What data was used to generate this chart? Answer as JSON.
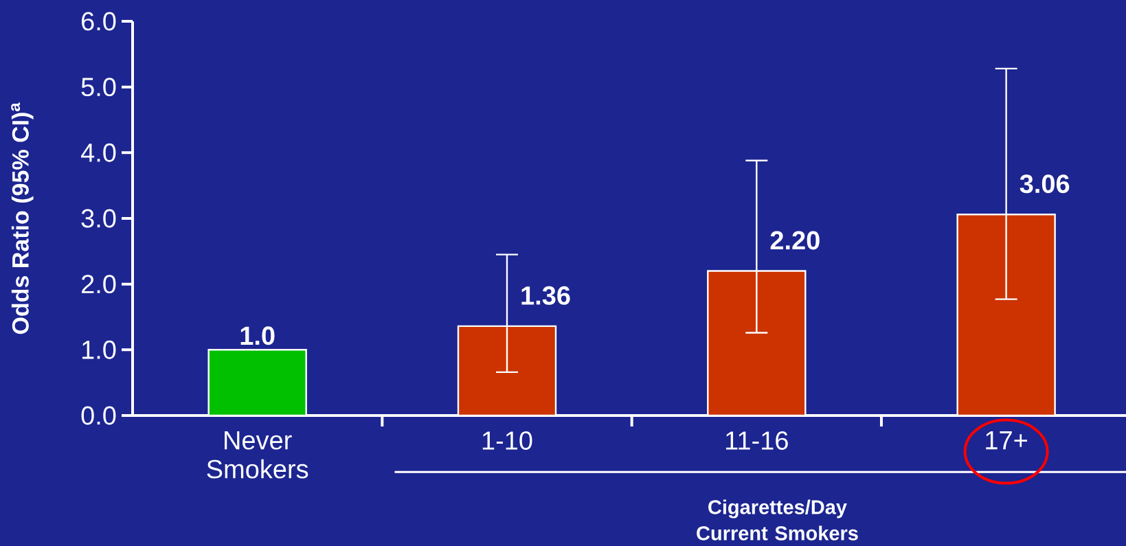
{
  "chart_data": {
    "type": "bar",
    "ylabel": "Odds Ratio (95% CI)$^{a}$",
    "xlabel": "Cigarettes/Day Current Smokers",
    "categories": [
      "Never Smokers",
      "1-10",
      "11-16",
      "17+"
    ],
    "values": [
      1.0,
      1.36,
      2.2,
      3.06
    ],
    "colors": [
      "#00c000",
      "#cc3300",
      "#cc3300",
      "#cc3300"
    ],
    "errors": [
      null,
      [
        0.66,
        2.45
      ],
      [
        1.26,
        3.88
      ],
      [
        1.77,
        5.28
      ]
    ],
    "value_labels": [
      "1.0",
      "1.36",
      "2.20",
      "3.06"
    ],
    "ylim": [
      0,
      6
    ],
    "yticks": [
      {
        "value": 0,
        "label": "0.0"
      },
      {
        "value": 1,
        "label": "1.0"
      },
      {
        "value": 2,
        "label": "2.0"
      },
      {
        "value": 3,
        "label": "3.0"
      },
      {
        "value": 4,
        "label": "4.0"
      },
      {
        "value": 5,
        "label": "5.0"
      },
      {
        "value": 6,
        "label": "6.0"
      }
    ],
    "grid": false
  }
}
